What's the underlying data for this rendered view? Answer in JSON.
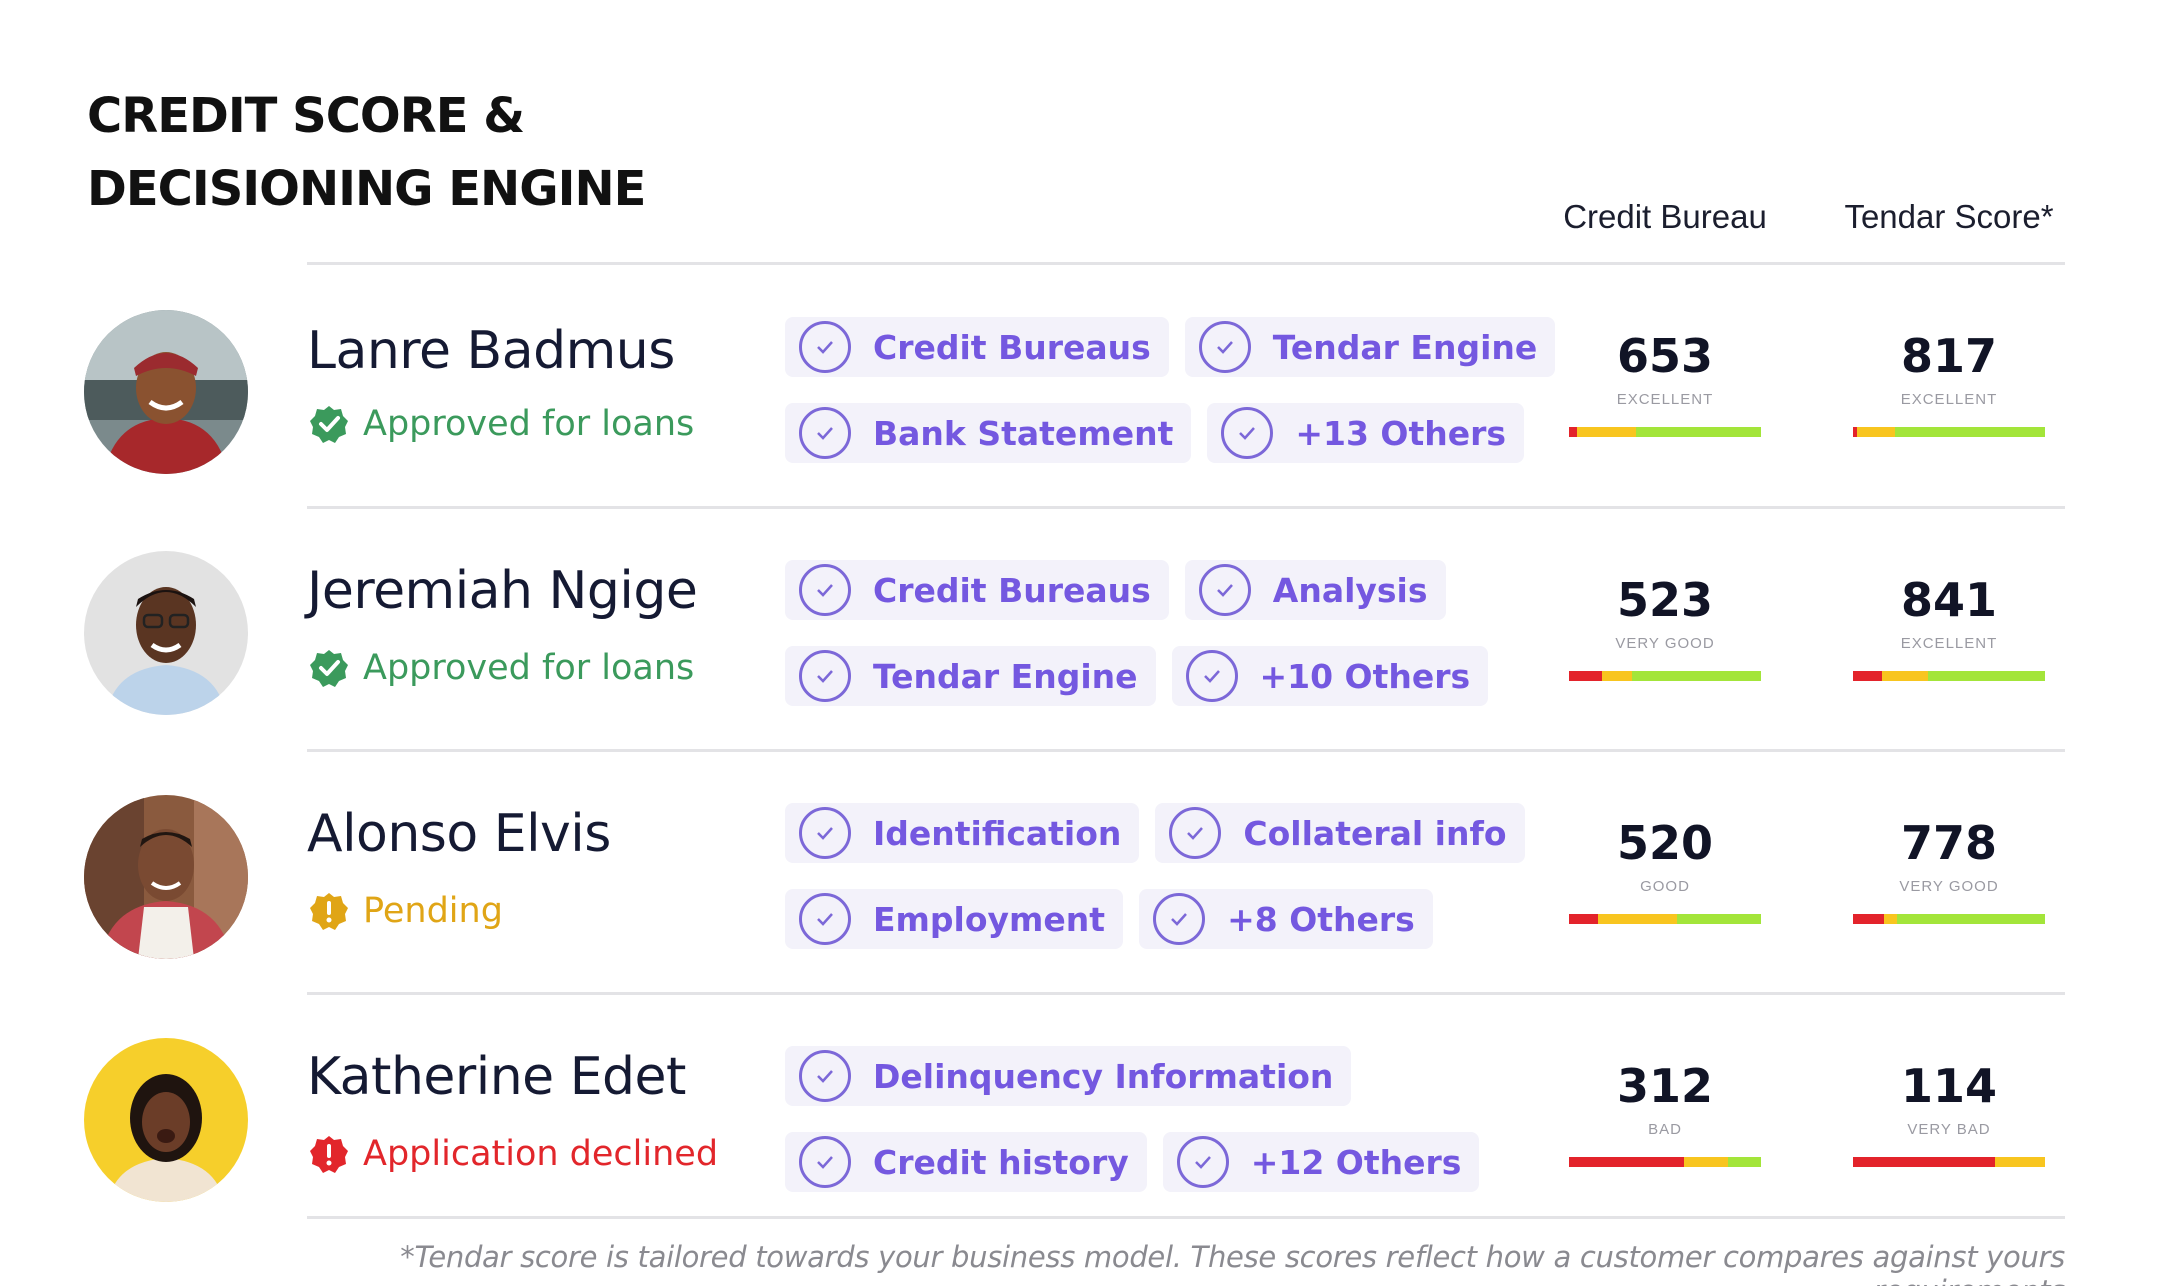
{
  "header": {
    "title_line1": "CREDIT SCORE &",
    "title_line2": "DECISIONING ENGINE",
    "col_credit_bureau": "Credit Bureau",
    "col_tendar_score": "Tendar Score*"
  },
  "colors": {
    "approved": "#3b9a5c",
    "pending": "#e0a516",
    "declined": "#e2262b",
    "chip_text": "#7458e0",
    "chip_bg": "#f3f2fa",
    "bar_red": "#e3232b",
    "bar_yellow": "#f8c51f",
    "bar_green": "#a3e53a"
  },
  "rows": [
    {
      "name": "Lanre Badmus",
      "status": "Approved for loans",
      "status_icon": "check-badge-icon",
      "chips_line1": [
        "Credit Bureaus",
        "Tendar Engine"
      ],
      "chips_line2": [
        "Bank Statement",
        "+13 Others"
      ],
      "bureau": {
        "score": "653",
        "rating": "EXCELLENT",
        "bar": [
          0.04,
          0.31,
          0.65
        ]
      },
      "tendar": {
        "score": "817",
        "rating": "EXCELLENT",
        "bar": [
          0.02,
          0.2,
          0.78
        ]
      }
    },
    {
      "name": "Jeremiah Ngige",
      "status": "Approved for loans",
      "status_icon": "check-badge-icon",
      "chips_line1": [
        "Credit Bureaus",
        "Analysis"
      ],
      "chips_line2": [
        "Tendar Engine",
        "+10 Others"
      ],
      "bureau": {
        "score": "523",
        "rating": "VERY GOOD",
        "bar": [
          0.17,
          0.16,
          0.67
        ]
      },
      "tendar": {
        "score": "841",
        "rating": "EXCELLENT",
        "bar": [
          0.15,
          0.24,
          0.61
        ]
      }
    },
    {
      "name": "Alonso Elvis",
      "status": "Pending",
      "status_icon": "alert-badge-icon",
      "chips_line1": [
        "Identification",
        "Collateral info"
      ],
      "chips_line2": [
        "Employment",
        "+8 Others"
      ],
      "bureau": {
        "score": "520",
        "rating": "GOOD",
        "bar": [
          0.15,
          0.41,
          0.44
        ]
      },
      "tendar": {
        "score": "778",
        "rating": "VERY GOOD",
        "bar": [
          0.16,
          0.07,
          0.77
        ]
      }
    },
    {
      "name": "Katherine Edet",
      "status": "Application declined",
      "status_icon": "alert-badge-icon",
      "chips_line1": [
        "Delinquency Information"
      ],
      "chips_line2": [
        "Credit history",
        "+12 Others"
      ],
      "bureau": {
        "score": "312",
        "rating": "BAD",
        "bar": [
          0.6,
          0.23,
          0.17
        ]
      },
      "tendar": {
        "score": "114",
        "rating": "VERY BAD",
        "bar": [
          0.74,
          0.26,
          0.0
        ]
      }
    }
  ],
  "footnote": "*Tendar score is tailored towards your business model. These scores reflect how a customer compares against yours requirements"
}
